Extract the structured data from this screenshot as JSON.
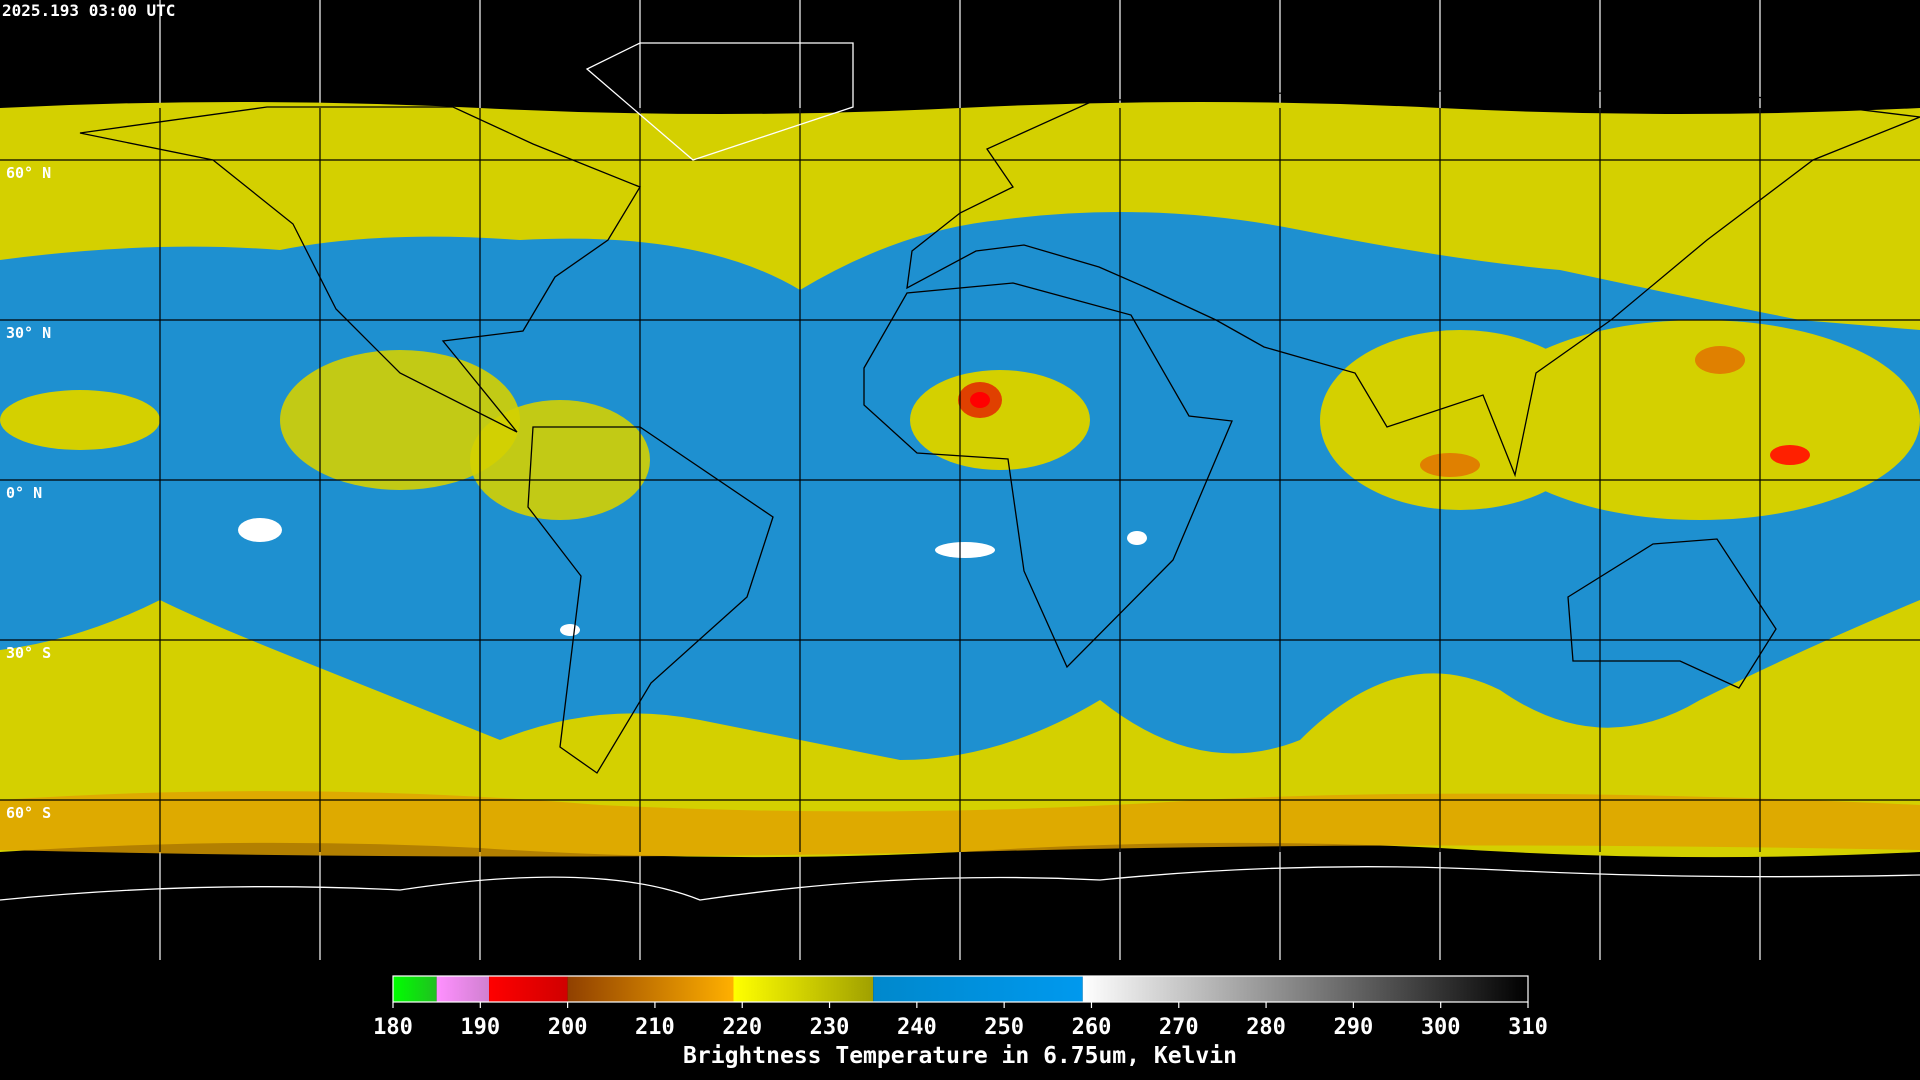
{
  "timestamp": "2025.193 03:00 UTC",
  "latitude_labels": [
    "60° N",
    "30° N",
    "0° N",
    "30° S",
    "60° S"
  ],
  "colorbar": {
    "label": "Brightness Temperature in 6.75um, Kelvin",
    "range": [
      180,
      310
    ],
    "ticks": [
      180,
      190,
      200,
      210,
      220,
      230,
      240,
      250,
      260,
      270,
      280,
      290,
      300,
      310
    ],
    "segments": [
      {
        "from": 180,
        "to": 185,
        "colors": [
          "#00ff00",
          "#20c020"
        ]
      },
      {
        "from": 185,
        "to": 191,
        "colors": [
          "#ff90ff",
          "#d080d0"
        ]
      },
      {
        "from": 191,
        "to": 200,
        "colors": [
          "#ff0000",
          "#d00000"
        ]
      },
      {
        "from": 200,
        "to": 219,
        "colors": [
          "#904000",
          "#ffb000"
        ]
      },
      {
        "from": 219,
        "to": 235,
        "colors": [
          "#ffff00",
          "#a0a000"
        ]
      },
      {
        "from": 235,
        "to": 259,
        "colors": [
          "#0088cc",
          "#0099ee"
        ]
      },
      {
        "from": 259,
        "to": 310,
        "colors": [
          "#ffffff",
          "#000000"
        ]
      }
    ]
  }
}
